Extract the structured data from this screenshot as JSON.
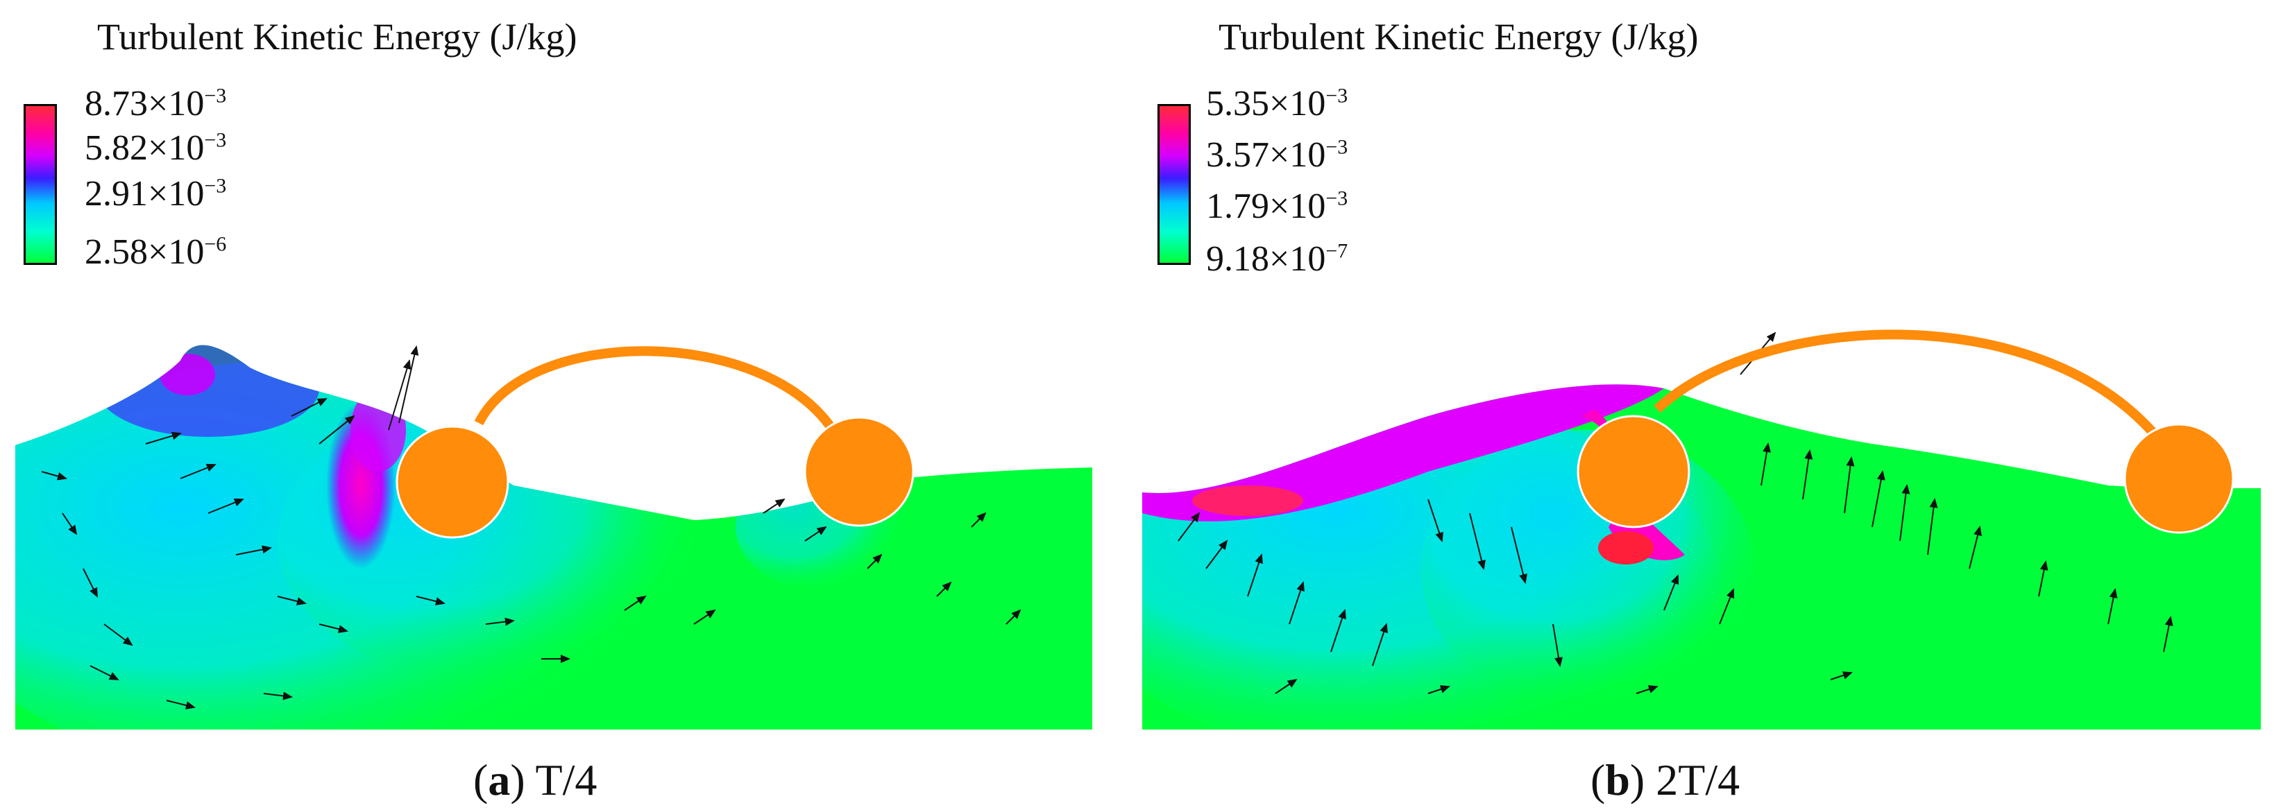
{
  "panels": [
    {
      "legend_title": "Turbulent Kinetic Energy (J/kg)",
      "ticks": [
        {
          "mantissa": "8.73",
          "times": "×10",
          "exponent": "−3"
        },
        {
          "mantissa": "5.82",
          "times": "×10",
          "exponent": "−3"
        },
        {
          "mantissa": "2.91",
          "times": "×10",
          "exponent": "−3"
        },
        {
          "mantissa": "2.58",
          "times": "×10",
          "exponent": "−6"
        }
      ],
      "caption_letter": "a",
      "caption_text": "T/4"
    },
    {
      "legend_title": "Turbulent Kinetic Energy (J/kg)",
      "ticks": [
        {
          "mantissa": "5.35",
          "times": "×10",
          "exponent": "−3"
        },
        {
          "mantissa": "3.57",
          "times": "×10",
          "exponent": "−3"
        },
        {
          "mantissa": "1.79",
          "times": "×10",
          "exponent": "−3"
        },
        {
          "mantissa": "9.18",
          "times": "×10",
          "exponent": "−7"
        }
      ],
      "caption_letter": "b",
      "caption_text": "2T/4"
    }
  ],
  "colors": {
    "low": "#00ff3a",
    "mid_low": "#00d8ff",
    "mid": "#3b1cff",
    "mid_high": "#ff00c8",
    "high": "#ff1f3a",
    "structure": "#ff8c0a"
  }
}
